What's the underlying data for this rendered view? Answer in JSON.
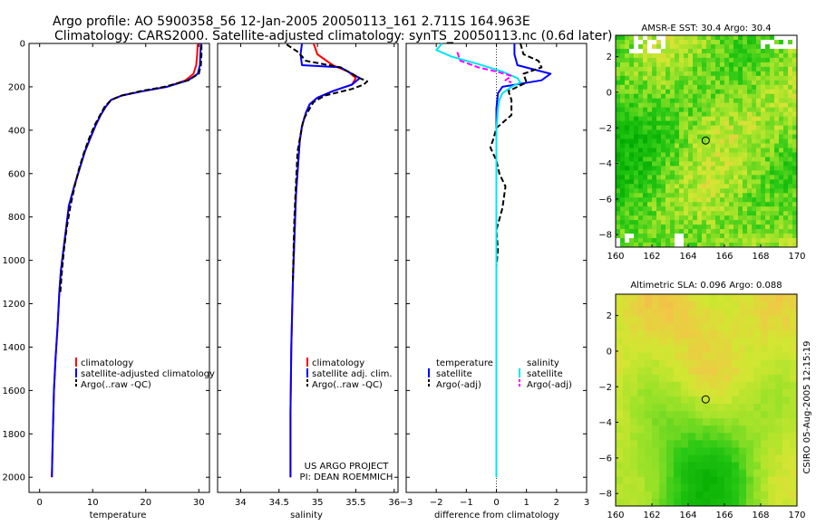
{
  "title": {
    "line1": "Argo profile: AO 5900358_56 12-Jan-2005 20050113_161 2.711S 164.963E",
    "line2": "Climatology: CARS2000. Satellite-adjusted climatology: synTS_20050113.nc (0.6d later)"
  },
  "footer": {
    "project": "US ARGO PROJECT",
    "pi": "PI: DEAN ROEMMICH",
    "credit": "CSIRO 05-Aug-2005 12:15:19"
  },
  "colors": {
    "climatology": "#ff0000",
    "satellite": "#0000ff",
    "argo": "#000000",
    "satellite_salinity": "#00e5ee",
    "argo_salinity": "#ff00ff"
  },
  "chart_data": [
    {
      "type": "line",
      "name": "temperature-profile",
      "xlabel": "temperature",
      "ylabel": "",
      "xlim": [
        -2,
        32
      ],
      "ylim": [
        2070,
        0
      ],
      "xticks": [
        0,
        10,
        20,
        30
      ],
      "yticks": [
        0,
        200,
        400,
        600,
        800,
        1000,
        1200,
        1400,
        1600,
        1800,
        2000
      ],
      "legend": {
        "position": "lower-right",
        "entries": [
          "climatology",
          "satellite-adjusted climatology",
          "Argo(..raw -QC)"
        ]
      },
      "series": [
        {
          "name": "climatology",
          "color": "#ff0000",
          "x": [
            29.8,
            29.7,
            29.5,
            29.0,
            27.5,
            24.0,
            19.5,
            15.5,
            13.5,
            12.5,
            11.5,
            10.5,
            9.5,
            8.5,
            7.5,
            6.5,
            5.5,
            5.0,
            4.5,
            4.0,
            3.7,
            3.4,
            3.0,
            2.7,
            2.5,
            2.3
          ],
          "y": [
            0,
            50,
            100,
            140,
            170,
            200,
            220,
            240,
            260,
            290,
            330,
            380,
            440,
            500,
            580,
            660,
            750,
            850,
            950,
            1050,
            1150,
            1300,
            1450,
            1600,
            1800,
            2000
          ]
        },
        {
          "name": "satellite-adjusted climatology",
          "color": "#0000ff",
          "x": [
            30.4,
            30.3,
            30.2,
            29.8,
            28.0,
            24.0,
            19.5,
            15.5,
            13.5,
            12.5,
            11.5,
            10.5,
            9.5,
            8.5,
            7.5,
            6.5,
            5.5,
            5.0,
            4.5,
            4.0,
            3.7,
            3.4,
            3.0,
            2.7,
            2.5,
            2.3
          ],
          "y": [
            0,
            50,
            100,
            140,
            170,
            200,
            220,
            240,
            260,
            290,
            330,
            380,
            440,
            500,
            580,
            660,
            750,
            850,
            950,
            1050,
            1150,
            1300,
            1450,
            1600,
            1800,
            2000
          ]
        },
        {
          "name": "Argo(..raw -QC)",
          "color": "#000000",
          "dash": true,
          "x": [
            30.5,
            30.5,
            30.4,
            30.0,
            28.0,
            23.5,
            19.0,
            15.5,
            13.5,
            12.3,
            11.4,
            10.3,
            9.3,
            8.4,
            7.4,
            6.6,
            5.8,
            5.1,
            4.6,
            4.2,
            3.9
          ],
          "y": [
            5,
            50,
            100,
            140,
            170,
            200,
            220,
            240,
            260,
            290,
            330,
            380,
            440,
            500,
            580,
            660,
            750,
            850,
            950,
            1050,
            1150
          ]
        }
      ]
    },
    {
      "type": "line",
      "name": "salinity-profile",
      "xlabel": "salinity",
      "xlim": [
        33.7,
        36.05
      ],
      "ylim": [
        2070,
        0
      ],
      "xticks": [
        34,
        34.5,
        35,
        35.5,
        36
      ],
      "legend": {
        "position": "lower-right",
        "entries": [
          "climatology",
          "satellite adj. clim.",
          "Argo(..raw -QC)"
        ]
      },
      "series": [
        {
          "name": "climatology",
          "color": "#ff0000",
          "x": [
            34.95,
            35.0,
            35.2,
            35.4,
            35.5,
            35.45,
            35.2,
            35.0,
            34.9,
            34.85,
            34.8,
            34.77,
            34.75,
            34.72,
            34.7,
            34.68,
            34.66,
            34.65,
            34.65
          ],
          "y": [
            0,
            50,
            100,
            130,
            160,
            190,
            220,
            250,
            280,
            320,
            380,
            450,
            550,
            700,
            900,
            1100,
            1400,
            1700,
            2000
          ]
        },
        {
          "name": "satellite adj. clim.",
          "color": "#0000ff",
          "x": [
            34.8,
            34.78,
            34.8,
            35.3,
            35.55,
            35.45,
            35.2,
            35.0,
            34.9,
            34.85,
            34.8,
            34.77,
            34.75,
            34.72,
            34.7,
            34.68,
            34.66,
            34.65,
            34.65
          ],
          "y": [
            0,
            50,
            100,
            110,
            160,
            190,
            220,
            250,
            280,
            320,
            380,
            450,
            550,
            700,
            900,
            1100,
            1400,
            1700,
            2000
          ]
        },
        {
          "name": "Argo(..raw -QC)",
          "color": "#000000",
          "dash": true,
          "x": [
            34.6,
            34.75,
            34.85,
            35.3,
            35.45,
            35.55,
            35.65,
            35.6,
            35.45,
            35.1,
            34.95,
            34.9,
            34.82,
            34.78,
            34.74,
            34.72,
            34.7,
            34.69,
            34.68
          ],
          "y": [
            5,
            40,
            80,
            110,
            140,
            160,
            175,
            190,
            210,
            240,
            270,
            300,
            350,
            420,
            500,
            650,
            800,
            950,
            1100
          ]
        }
      ]
    },
    {
      "type": "line",
      "name": "difference-profile",
      "xlabel": "difference from climatology",
      "xlim": [
        -3,
        3
      ],
      "ylim": [
        2070,
        0
      ],
      "xticks": [
        -3,
        -2,
        -1,
        0,
        1,
        2,
        3
      ],
      "legend": {
        "position": "lower-center",
        "entries": [
          "temperature",
          "satellite",
          "Argo(-adj)",
          "salinity",
          "satellite",
          "Argo(-adj)"
        ]
      },
      "series": [
        {
          "name": "temperature satellite",
          "color": "#0000ff",
          "x": [
            0.6,
            0.6,
            0.7,
            1.8,
            1.5,
            0.2,
            0.05,
            0,
            0,
            0
          ],
          "y": [
            0,
            50,
            100,
            140,
            170,
            200,
            230,
            300,
            600,
            1400
          ]
        },
        {
          "name": "temperature Argo(-adj)",
          "color": "#000000",
          "dash": true,
          "x": [
            0.8,
            0.9,
            1.4,
            1.5,
            0.9,
            1.0,
            0.4,
            0.5,
            0.5,
            0.0,
            -0.1,
            -0.2,
            0.0,
            0.1,
            0.3,
            0.2,
            0.0,
            0.05,
            0.0,
            0.0
          ],
          "y": [
            0,
            50,
            80,
            110,
            140,
            180,
            220,
            260,
            330,
            390,
            440,
            480,
            540,
            600,
            660,
            760,
            860,
            950,
            1030,
            1050
          ]
        },
        {
          "name": "salinity satellite",
          "color": "#00e5ee",
          "x": [
            -1.8,
            -2.0,
            -1.5,
            -0.6,
            0.2,
            0.7,
            0.8,
            0.5,
            0.2,
            0.1,
            0.05,
            0.0,
            0.0
          ],
          "y": [
            0,
            30,
            60,
            95,
            130,
            160,
            180,
            200,
            230,
            260,
            300,
            400,
            2000
          ]
        },
        {
          "name": "salinity Argo(-adj)",
          "color": "#ff00ff",
          "dash": true,
          "x": [
            -1.3,
            -1.2,
            -0.6,
            0.0,
            0.5,
            0.3,
            0.5
          ],
          "y": [
            40,
            80,
            110,
            130,
            150,
            170,
            180
          ]
        }
      ]
    },
    {
      "type": "heatmap",
      "name": "sst-map",
      "title": "AMSR-E SST: 30.4 Argo: 30.4",
      "xticks": [
        160,
        162,
        164,
        166,
        168,
        170
      ],
      "yticks": [
        2,
        0,
        -2,
        -4,
        -6,
        -8
      ],
      "xlim": [
        160,
        170
      ],
      "ylim": [
        -8.7,
        3.2
      ],
      "marker": {
        "lon": 164.963,
        "lat": -2.711
      }
    },
    {
      "type": "heatmap",
      "name": "sla-map",
      "title": "Altimetric SLA: 0.096 Argo: 0.088",
      "xticks": [
        160,
        162,
        164,
        166,
        168,
        170
      ],
      "yticks": [
        2,
        0,
        -2,
        -4,
        -6,
        -8
      ],
      "xlim": [
        160,
        170
      ],
      "ylim": [
        -8.7,
        3.2
      ],
      "marker": {
        "lon": 164.963,
        "lat": -2.711
      }
    }
  ]
}
